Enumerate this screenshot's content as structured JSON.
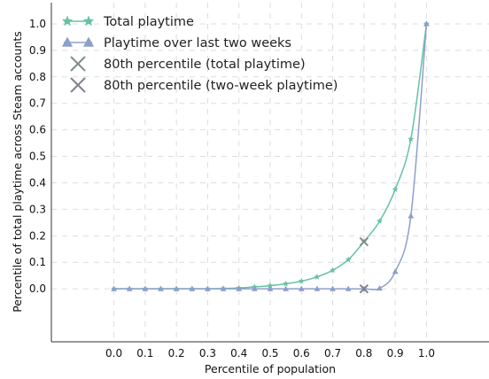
{
  "chart_data": {
    "type": "line",
    "xlabel": "Percentile of population",
    "ylabel": "Percentile of total playtime across Steam accounts",
    "xlim": [
      -0.2,
      1.2
    ],
    "ylim": [
      -0.2,
      1.08
    ],
    "x_ticks": [
      "0.0",
      "0.1",
      "0.2",
      "0.3",
      "0.4",
      "0.5",
      "0.6",
      "0.7",
      "0.8",
      "0.9",
      "1.0"
    ],
    "y_ticks": [
      "0.0",
      "0.1",
      "0.2",
      "0.3",
      "0.4",
      "0.5",
      "0.6",
      "0.7",
      "0.8",
      "0.9",
      "1.0"
    ],
    "grid": true,
    "legend_position": "top-left",
    "x": [
      0,
      0.05,
      0.1,
      0.15,
      0.2,
      0.25,
      0.3,
      0.35,
      0.4,
      0.45,
      0.5,
      0.55,
      0.6,
      0.65,
      0.7,
      0.75,
      0.8,
      0.85,
      0.9,
      0.95,
      1.0
    ],
    "series": [
      {
        "name": "Total playtime",
        "color": "#66c2a5",
        "marker": "star",
        "values": [
          0,
          0,
          0,
          0,
          0,
          0,
          0,
          0.001,
          0.003,
          0.007,
          0.012,
          0.019,
          0.029,
          0.045,
          0.07,
          0.11,
          0.178,
          0.255,
          0.375,
          0.565,
          1.0
        ]
      },
      {
        "name": "Playtime over last two weeks",
        "color": "#8da0cb",
        "marker": "triangle",
        "values": [
          0,
          0,
          0,
          0,
          0,
          0,
          0,
          0,
          0,
          0,
          0,
          0,
          0,
          0,
          0,
          0,
          0,
          0.002,
          0.065,
          0.275,
          1.0
        ]
      }
    ],
    "markers": [
      {
        "name": "80th percentile (total playtime)",
        "x": 0.8,
        "y": 0.178,
        "color": "#7f8f85"
      },
      {
        "name": "80th percentile (two-week playtime)",
        "x": 0.8,
        "y": 0.0,
        "color": "#7f838f"
      }
    ]
  }
}
